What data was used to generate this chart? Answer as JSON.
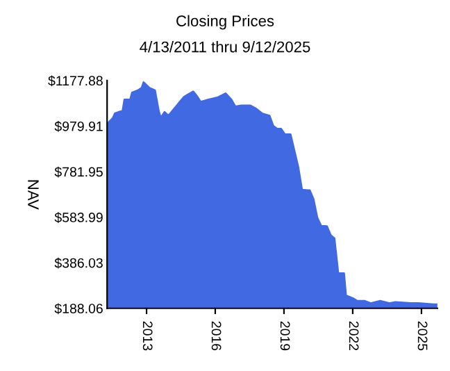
{
  "chart_data": {
    "type": "area",
    "title": "Closing Prices",
    "subtitle": "4/13/2011 thru 9/12/2025",
    "ylabel": "NAV",
    "x": [
      "2011-04-13",
      "2011-07",
      "2011-08",
      "2011-10",
      "2011-12",
      "2012-01",
      "2012-04",
      "2012-05",
      "2012-08",
      "2012-10",
      "2012-11",
      "2013-02",
      "2013-05",
      "2013-07",
      "2013-08",
      "2013-10",
      "2013-12",
      "2014-04",
      "2014-08",
      "2014-10",
      "2015-01",
      "2015-03",
      "2015-05",
      "2015-09",
      "2016-02",
      "2016-06",
      "2016-09",
      "2016-11",
      "2017-02",
      "2017-07",
      "2017-10",
      "2018-01",
      "2018-05",
      "2018-07",
      "2018-09",
      "2018-11",
      "2019-01",
      "2019-04",
      "2019-06",
      "2019-08",
      "2019-10",
      "2020-01",
      "2020-02",
      "2020-04",
      "2020-06",
      "2020-08",
      "2020-11",
      "2021-01",
      "2021-03",
      "2021-05",
      "2021-08",
      "2021-09",
      "2022-01",
      "2022-03",
      "2022-07",
      "2022-10",
      "2023-03",
      "2023-08",
      "2023-11",
      "2024-07",
      "2024-11",
      "2025-07",
      "2025-09-12"
    ],
    "series": [
      {
        "color": "#4169e1",
        "values": [
          989,
          1015,
          1035,
          1041,
          1045,
          1095,
          1095,
          1125,
          1135,
          1146,
          1170,
          1146,
          1135,
          1045,
          1015,
          1041,
          1025,
          1065,
          1105,
          1116,
          1130,
          1110,
          1085,
          1095,
          1105,
          1122,
          1095,
          1065,
          1069,
          1069,
          1055,
          1035,
          1025,
          980,
          968,
          968,
          944,
          944,
          874,
          804,
          703,
          701,
          701,
          663,
          582,
          546,
          545,
          506,
          492,
          341,
          340,
          244,
          230,
          220,
          220,
          210,
          220,
          210,
          215,
          210,
          210,
          205,
          205
        ]
      }
    ],
    "xlim": [
      "2011-04-13",
      "2025-09-12"
    ],
    "xticks": [
      {
        "value": "2013-01-01",
        "label": "2013"
      },
      {
        "value": "2016-01-01",
        "label": "2016"
      },
      {
        "value": "2019-01-01",
        "label": "2019"
      },
      {
        "value": "2022-01-01",
        "label": "2022"
      },
      {
        "value": "2025-01-01",
        "label": "2025"
      }
    ],
    "ylim": [
      188.06,
      1177.88
    ],
    "yticks": [
      {
        "value": 188.06,
        "label": "$188.06"
      },
      {
        "value": 386.03,
        "label": "$386.03"
      },
      {
        "value": 583.99,
        "label": "$583.99"
      },
      {
        "value": 781.95,
        "label": "$781.95"
      },
      {
        "value": 979.91,
        "label": "$979.91"
      },
      {
        "value": 1177.88,
        "label": "$1177.88"
      }
    ],
    "grid": false,
    "legend": false
  }
}
